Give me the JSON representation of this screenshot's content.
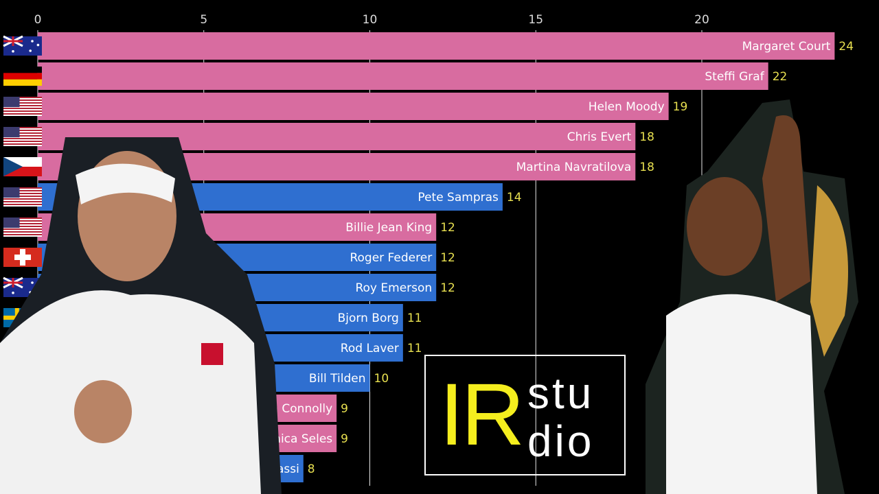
{
  "chart_data": {
    "type": "bar",
    "orientation": "horizontal",
    "title": "",
    "xlabel": "",
    "ylabel": "",
    "xlim": [
      0,
      24.5
    ],
    "x_ticks": [
      0,
      5,
      10,
      15,
      20
    ],
    "grid": true,
    "colors": {
      "female": "#d86ca0",
      "male": "#2f6fd0",
      "value_label": "#e8e050",
      "background": "#000000"
    },
    "bars": [
      {
        "name": "Margaret Court",
        "value": 24,
        "flag": "australia",
        "group": "female"
      },
      {
        "name": "Steffi Graf",
        "value": 22,
        "flag": "germany",
        "group": "female"
      },
      {
        "name": "Helen Moody",
        "value": 19,
        "flag": "usa",
        "group": "female"
      },
      {
        "name": "Chris Evert",
        "value": 18,
        "flag": "usa",
        "group": "female"
      },
      {
        "name": "Martina Navratilova",
        "value": 18,
        "flag": "czech",
        "group": "female"
      },
      {
        "name": "Pete Sampras",
        "value": 14,
        "flag": "usa",
        "group": "male"
      },
      {
        "name": "Billie Jean King",
        "value": 12,
        "flag": "usa",
        "group": "female"
      },
      {
        "name": "Roger Federer",
        "value": 12,
        "flag": "switzerland",
        "group": "male"
      },
      {
        "name": "Roy Emerson",
        "value": 12,
        "flag": "australia",
        "group": "male"
      },
      {
        "name": "Bjorn Borg",
        "value": 11,
        "flag": "sweden",
        "group": "male"
      },
      {
        "name": "Rod Laver",
        "value": 11,
        "flag": "australia",
        "group": "male"
      },
      {
        "name": "Bill Tilden",
        "value": 10,
        "flag": "usa",
        "group": "male"
      },
      {
        "name": "Maureen Connolly",
        "value": 9,
        "flag": "usa",
        "group": "female"
      },
      {
        "name": "Monica Seles",
        "value": 9,
        "flag": "usa",
        "group": "female"
      },
      {
        "name": "Andre Agassi",
        "value": 8,
        "flag": "usa",
        "group": "male"
      }
    ]
  },
  "logo": {
    "big": "IR",
    "line1": "stu",
    "line2": "dio"
  }
}
